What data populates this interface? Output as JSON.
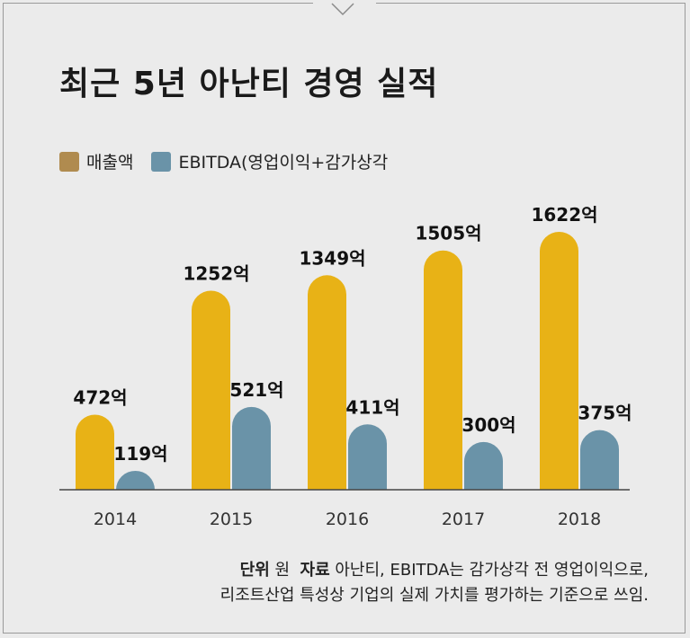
{
  "title": "최근 5년 아난티 경영 실적",
  "legend": [
    {
      "label": "매출액",
      "color": "#b08b4f"
    },
    {
      "label": "EBITDA(영업이익+감가상각",
      "color": "#6a93a8"
    }
  ],
  "note": {
    "unit_label": "단위",
    "unit_value": "원",
    "source_label": "자료",
    "source_text": "아난티, EBITDA는 감가상각 전 영업이익으로,",
    "line2": "리조트산업 특성상 기업의 실제 가치를 평가하는 기준으로 쓰임."
  },
  "chart_data": {
    "type": "bar",
    "categories": [
      "2014",
      "2015",
      "2016",
      "2017",
      "2018"
    ],
    "series": [
      {
        "name": "매출액",
        "values": [
          472,
          1252,
          1349,
          1505,
          1622
        ],
        "labels": [
          "472억",
          "1252억",
          "1349억",
          "1505억",
          "1622억"
        ],
        "color": "#e8b216"
      },
      {
        "name": "EBITDA(영업이익+감가상각",
        "values": [
          119,
          521,
          411,
          300,
          375
        ],
        "labels": [
          "119억",
          "521억",
          "411억",
          "300억",
          "375억"
        ],
        "color": "#6a93a8"
      }
    ],
    "unit": "억"
  }
}
